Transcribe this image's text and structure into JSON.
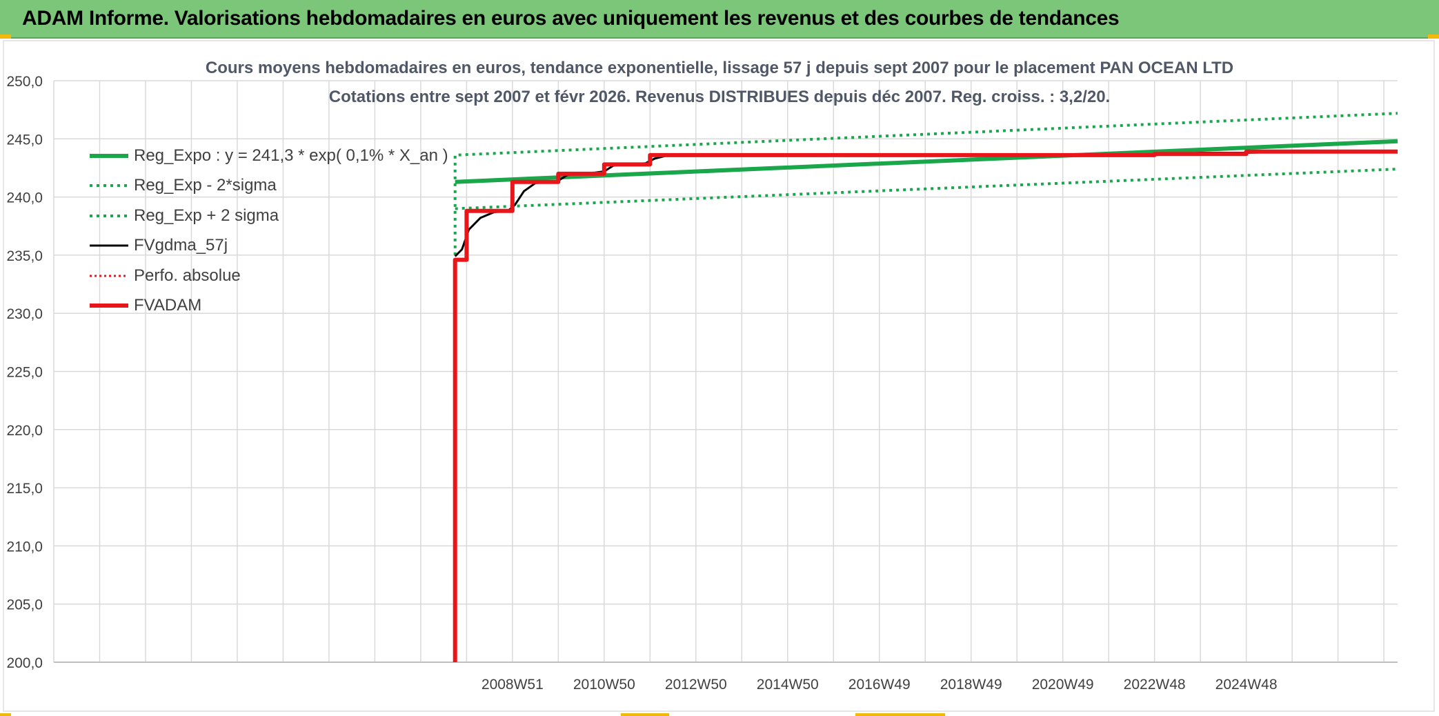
{
  "header": {
    "title": "ADAM Informe. Valorisations hebdomadaires en euros avec uniquement les revenus et des courbes de tendances"
  },
  "colors": {
    "header_bg": "#7cc67a",
    "green": "#1aa64a",
    "black": "#000000",
    "red": "#e8161b",
    "grid": "#d9d9d9",
    "title": "#505868"
  },
  "chart_data": {
    "type": "line",
    "title": "Cours moyens hebdomadaires en euros, tendance exponentielle, lissage 57 j depuis sept 2007 pour le placement PAN OCEAN LTD",
    "subtitle": "Cotations entre sept 2007 et févr 2026. Revenus DISTRIBUES depuis déc 2007. Reg. croiss. : 3,2/20.",
    "xlabel": "",
    "ylabel": "",
    "ylim": [
      200,
      250
    ],
    "yticks": [
      "200,0",
      "205,0",
      "210,0",
      "215,0",
      "220,0",
      "225,0",
      "230,0",
      "235,0",
      "240,0",
      "245,0",
      "250,0"
    ],
    "xlim": [
      1998.0,
      2027.3
    ],
    "xticks": [
      {
        "label": "2008W51",
        "x": 2008.0
      },
      {
        "label": "2010W50",
        "x": 2010.0
      },
      {
        "label": "2012W50",
        "x": 2012.0
      },
      {
        "label": "2014W50",
        "x": 2014.0
      },
      {
        "label": "2016W49",
        "x": 2016.0
      },
      {
        "label": "2018W49",
        "x": 2018.0
      },
      {
        "label": "2020W49",
        "x": 2020.0
      },
      {
        "label": "2022W48",
        "x": 2022.0
      },
      {
        "label": "2024W48",
        "x": 2024.0
      }
    ],
    "grid": true,
    "legend_position": "top-left",
    "series": [
      {
        "name": "Reg_Expo : y = 241,3 * exp( 0,1% *  X_an )",
        "color": "#1aa64a",
        "style": "solid",
        "width": 6,
        "points": [
          [
            2006.75,
            241.3
          ],
          [
            2027.3,
            244.8
          ]
        ]
      },
      {
        "name": "Reg_Exp - 2*sigma",
        "color": "#1aa64a",
        "style": "dotted",
        "width": 4,
        "points": [
          [
            2006.75,
            235.0
          ],
          [
            2006.75,
            243.6
          ],
          [
            2027.3,
            247.2
          ]
        ]
      },
      {
        "name": "Reg_Exp + 2 sigma",
        "color": "#1aa64a",
        "style": "dotted",
        "width": 4,
        "points": [
          [
            2006.75,
            239.0
          ],
          [
            2027.3,
            242.4
          ]
        ]
      },
      {
        "name": "FVgdma_57j",
        "color": "#000000",
        "style": "solid",
        "width": 3,
        "points": [
          [
            2006.75,
            234.9
          ],
          [
            2006.9,
            235.5
          ],
          [
            2007.05,
            237.2
          ],
          [
            2007.3,
            238.2
          ],
          [
            2007.6,
            238.7
          ],
          [
            2007.9,
            238.8
          ],
          [
            2008.05,
            239.3
          ],
          [
            2008.25,
            240.5
          ],
          [
            2008.5,
            241.2
          ],
          [
            2008.8,
            241.3
          ],
          [
            2009.0,
            241.4
          ],
          [
            2009.2,
            241.9
          ],
          [
            2009.4,
            242.0
          ],
          [
            2009.8,
            242.1
          ],
          [
            2010.0,
            242.2
          ],
          [
            2010.2,
            242.7
          ],
          [
            2010.5,
            242.8
          ],
          [
            2010.9,
            242.9
          ],
          [
            2011.1,
            243.3
          ],
          [
            2011.4,
            243.6
          ],
          [
            2013.0,
            243.6
          ],
          [
            2016.0,
            243.6
          ],
          [
            2020.0,
            243.6
          ],
          [
            2022.0,
            243.6
          ],
          [
            2023.0,
            243.8
          ],
          [
            2024.0,
            243.8
          ],
          [
            2025.0,
            243.9
          ],
          [
            2027.3,
            243.9
          ]
        ]
      },
      {
        "name": "Perfo. absolue",
        "color": "#e8161b",
        "style": "dotted",
        "width": 3,
        "points": []
      },
      {
        "name": "FVADAM",
        "color": "#e8161b",
        "style": "solid",
        "width": 6,
        "points": [
          [
            2006.75,
            200.0
          ],
          [
            2006.75,
            234.6
          ],
          [
            2007.0,
            234.6
          ],
          [
            2007.0,
            238.8
          ],
          [
            2008.0,
            238.8
          ],
          [
            2008.0,
            241.3
          ],
          [
            2009.0,
            241.3
          ],
          [
            2009.0,
            242.0
          ],
          [
            2010.0,
            242.0
          ],
          [
            2010.0,
            242.8
          ],
          [
            2011.0,
            242.8
          ],
          [
            2011.0,
            243.6
          ],
          [
            2022.0,
            243.6
          ],
          [
            2022.0,
            243.7
          ],
          [
            2024.0,
            243.7
          ],
          [
            2024.0,
            243.9
          ],
          [
            2027.3,
            243.9
          ]
        ]
      }
    ]
  }
}
